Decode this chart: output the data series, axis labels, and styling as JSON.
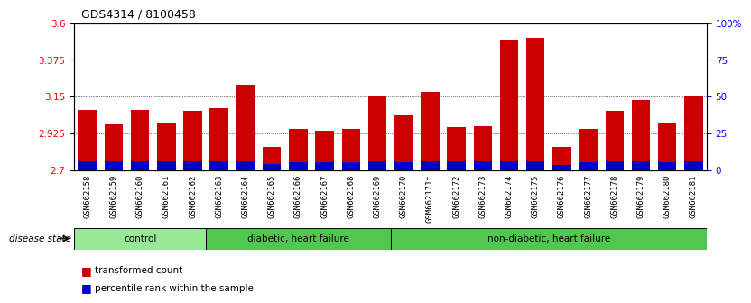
{
  "title": "GDS4314 / 8100458",
  "samples": [
    "GSM662158",
    "GSM662159",
    "GSM662160",
    "GSM662161",
    "GSM662162",
    "GSM662163",
    "GSM662164",
    "GSM662165",
    "GSM662166",
    "GSM662167",
    "GSM662168",
    "GSM662169",
    "GSM662170",
    "GSM662171t",
    "GSM662172",
    "GSM662173",
    "GSM662174",
    "GSM662175",
    "GSM662176",
    "GSM662177",
    "GSM662178",
    "GSM662179",
    "GSM662180",
    "GSM662181"
  ],
  "red_values": [
    3.065,
    2.985,
    3.07,
    2.99,
    3.06,
    3.08,
    3.22,
    2.84,
    2.95,
    2.94,
    2.95,
    3.15,
    3.04,
    3.18,
    2.96,
    2.97,
    3.5,
    3.51,
    2.84,
    2.95,
    3.06,
    3.13,
    2.99,
    3.15
  ],
  "blue_values": [
    0.045,
    0.045,
    0.045,
    0.045,
    0.045,
    0.045,
    0.045,
    0.03,
    0.04,
    0.04,
    0.04,
    0.045,
    0.04,
    0.045,
    0.045,
    0.045,
    0.045,
    0.045,
    0.025,
    0.04,
    0.045,
    0.045,
    0.04,
    0.045
  ],
  "groups": [
    {
      "label": "control",
      "start": 0,
      "end": 5,
      "color": "#98E898"
    },
    {
      "label": "diabetic, heart failure",
      "start": 5,
      "end": 12,
      "color": "#50C850"
    },
    {
      "label": "non-diabetic, heart failure",
      "start": 12,
      "end": 24,
      "color": "#50C850"
    }
  ],
  "ylim_left": [
    2.7,
    3.6
  ],
  "yticks_left": [
    2.7,
    2.925,
    3.15,
    3.375,
    3.6
  ],
  "ytick_labels_left": [
    "2.7",
    "2.925",
    "3.15",
    "3.375",
    "3.6"
  ],
  "ylim_right": [
    0,
    100
  ],
  "yticks_right": [
    0,
    25,
    50,
    75,
    100
  ],
  "ytick_labels_right": [
    "0",
    "25",
    "50",
    "75",
    "100%"
  ],
  "bar_color": "#CC0000",
  "blue_color": "#0000CC",
  "tick_bg_color": "#C8C8C8",
  "disease_state_label": "disease state",
  "legend_items": [
    {
      "label": "transformed count",
      "color": "#CC0000"
    },
    {
      "label": "percentile rank within the sample",
      "color": "#0000CC"
    }
  ]
}
